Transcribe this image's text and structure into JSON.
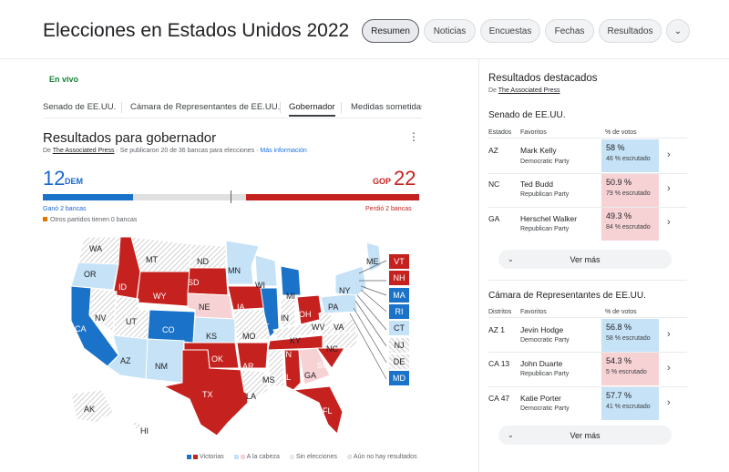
{
  "header": {
    "title": "Elecciones en Estados Unidos 2022",
    "menu_icon": "⋮",
    "chips": [
      "Resumen",
      "Noticias",
      "Encuestas",
      "Fechas",
      "Resultados"
    ],
    "more_icon": "⌄"
  },
  "left": {
    "live": "En vivo",
    "subtabs": [
      "Senado de EE.UU.",
      "Cámara de Representantes de EE.UU.",
      "Gobernador",
      "Medidas sometidas"
    ],
    "gov": {
      "title": "Resultados para gobernador",
      "sub_prefix": "De ",
      "sub_source": "The Associated Press",
      "sub_text": " · Se publicaron 20 de 36 bancas para elecciones · ",
      "sub_more": "Más información",
      "dem_count": "12",
      "dem_label": "DEM",
      "gop_label": "GOP",
      "gop_count": "22",
      "won_dem": "Ganó 2 bancas",
      "won_gop": "Perdió 2 bancas",
      "others": "Otros partidos tienen 0 bancas",
      "bar": {
        "dem_fraction": 0.24,
        "uncalled_fraction": 0.3,
        "gop_fraction": 0.46
      },
      "colors": {
        "dem": "#1a73c8",
        "gop": "#c5221f",
        "dem_lean": "#c6e2f7",
        "gop_lean": "#f7d2d4",
        "none": "#e0e0e0"
      }
    },
    "map": {
      "labels": [
        "WA",
        "MT",
        "ND",
        "MN",
        "WI",
        "MI",
        "OR",
        "ID",
        "SD",
        "WY",
        "NE",
        "IA",
        "IL",
        "IN",
        "OH",
        "PA",
        "NY",
        "NV",
        "UT",
        "CO",
        "KS",
        "MO",
        "KY",
        "WV",
        "VA",
        "CA",
        "AZ",
        "NM",
        "OK",
        "AR",
        "TN",
        "NC",
        "SC",
        "TX",
        "LA",
        "MS",
        "AL",
        "GA",
        "FL",
        "AK",
        "HI",
        "ME"
      ],
      "side_boxes": [
        "VT",
        "NH",
        "MA",
        "RI",
        "CT",
        "NJ",
        "DE",
        "MD"
      ]
    },
    "legend": [
      "Victorias",
      "A la cabeza",
      "Sin elecciones",
      "Aún no hay resultados"
    ]
  },
  "right": {
    "title": "Resultados destacados",
    "sub_prefix": "De ",
    "sub_source": "The Associated Press",
    "senate": {
      "title": "Senado de EE.UU.",
      "headers": [
        "Estados",
        "Favoritos",
        "% de votos"
      ],
      "rows": [
        {
          "state": "AZ",
          "cand": "Mark Kelly",
          "party": "Democratic Party",
          "pct": "58 %",
          "rep": "46 % escrutado",
          "color": "blue"
        },
        {
          "state": "NC",
          "cand": "Ted Budd",
          "party": "Republican Party",
          "pct": "50.9 %",
          "rep": "79 % escrutado",
          "color": "red"
        },
        {
          "state": "GA",
          "cand": "Herschel Walker",
          "party": "Republican Party",
          "pct": "49.3 %",
          "rep": "84 % escrutado",
          "color": "red"
        }
      ],
      "more": "Ver más"
    },
    "house": {
      "title": "Cámara de Representantes de EE.UU.",
      "headers": [
        "Distritos",
        "Favoritos",
        "% de votos"
      ],
      "rows": [
        {
          "state": "AZ 1",
          "cand": "Jevin Hodge",
          "party": "Democratic Party",
          "pct": "56.8 %",
          "rep": "58 % escrutado",
          "color": "blue"
        },
        {
          "state": "CA 13",
          "cand": "John Duarte",
          "party": "Republican Party",
          "pct": "54.3 %",
          "rep": "5 % escrutado",
          "color": "red"
        },
        {
          "state": "CA 47",
          "cand": "Katie Porter",
          "party": "Democratic Party",
          "pct": "57.7 %",
          "rep": "41 % escrutado",
          "color": "blue"
        }
      ],
      "more": "Ver más"
    }
  }
}
